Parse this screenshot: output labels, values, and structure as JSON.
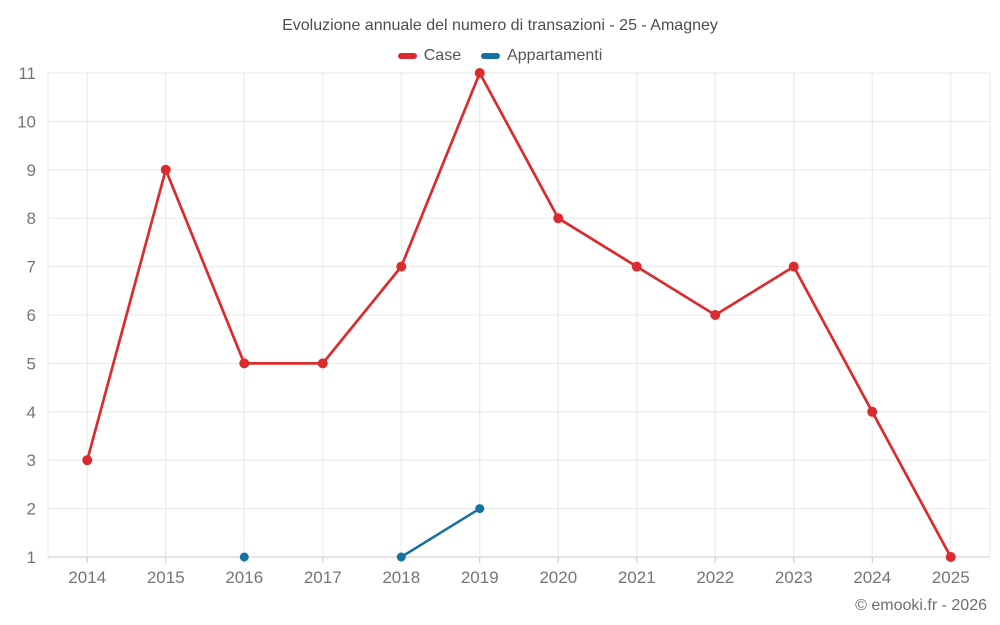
{
  "chart_data": {
    "type": "line",
    "title": "Evoluzione annuale del numero di transazioni - 25 - Amagney",
    "categories": [
      "2014",
      "2015",
      "2016",
      "2017",
      "2018",
      "2019",
      "2020",
      "2021",
      "2022",
      "2023",
      "2024",
      "2025"
    ],
    "series": [
      {
        "name": "Case",
        "color": "#dc2b2f",
        "values": [
          3,
          9,
          5,
          5,
          7,
          11,
          8,
          7,
          6,
          7,
          4,
          1
        ],
        "line_width": 2.7,
        "marker_radius": 5
      },
      {
        "name": "Appartamenti",
        "color": "#1572a0",
        "values": [
          null,
          null,
          1,
          null,
          1,
          2,
          null,
          null,
          null,
          null,
          null,
          null
        ],
        "line_width": 2.5,
        "marker_radius": 4.5
      }
    ],
    "xlabel": "",
    "ylabel": "",
    "ylim": [
      1,
      11
    ],
    "yticks": [
      1,
      2,
      3,
      4,
      5,
      6,
      7,
      8,
      9,
      10,
      11
    ],
    "grid": true,
    "legend_position": "top",
    "footer": "© emooki.fr - 2026"
  },
  "theme": {
    "background": "#ffffff",
    "grid_color": "#e8e8e8",
    "axis_line_color": "#c8c8c8",
    "tick_label_color": "#757575",
    "title_color": "#4d4d4d",
    "legend_text_color": "#555555",
    "footer_color": "#6e6e6e"
  }
}
